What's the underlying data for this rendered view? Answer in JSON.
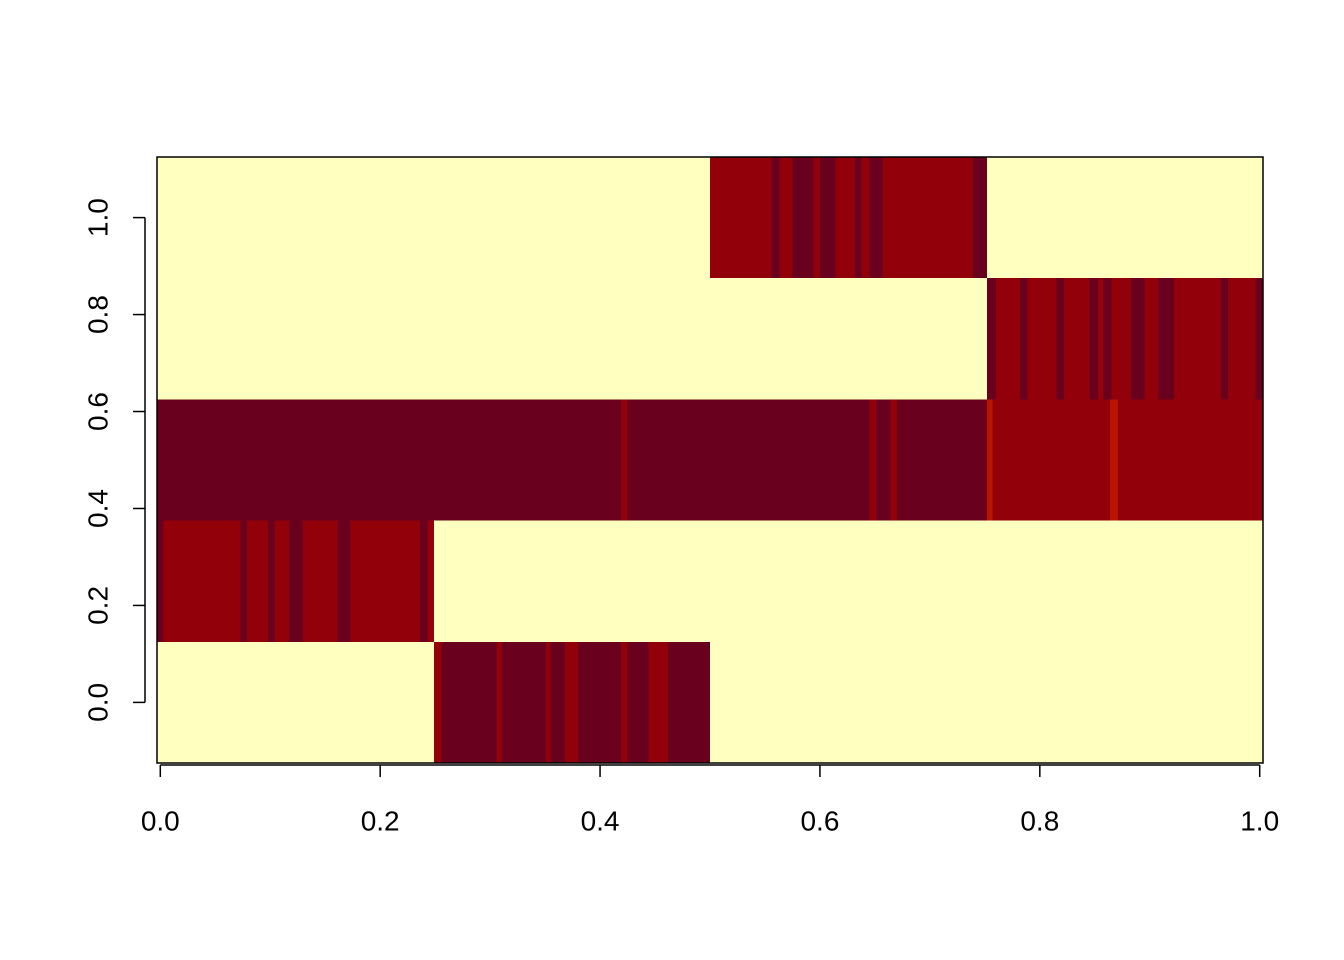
{
  "chart_data": {
    "type": "heatmap",
    "xlim": [
      -0.003,
      1.003
    ],
    "ylim": [
      -0.125,
      1.125
    ],
    "xticks": [
      {
        "value": 0,
        "label": "0.0"
      },
      {
        "value": 0.2,
        "label": "0.2"
      },
      {
        "value": 0.4,
        "label": "0.4"
      },
      {
        "value": 0.6,
        "label": "0.6"
      },
      {
        "value": 0.8,
        "label": "0.8"
      },
      {
        "value": 1,
        "label": "1.0"
      }
    ],
    "yticks": [
      {
        "value": 0,
        "label": "0.0"
      },
      {
        "value": 0.2,
        "label": "0.2"
      },
      {
        "value": 0.4,
        "label": "0.4"
      },
      {
        "value": 0.6,
        "label": "0.6"
      },
      {
        "value": 0.8,
        "label": "0.8"
      },
      {
        "value": 1,
        "label": "1.0"
      }
    ],
    "colors": [
      "#FFFFBF",
      "#B81400",
      "#92000A",
      "#69001E"
    ],
    "rows": [
      {
        "y": 0,
        "runs": [
          [
            -0.003,
            0.249,
            0
          ],
          [
            0.249,
            0.256,
            2
          ],
          [
            0.256,
            0.306,
            3
          ],
          [
            0.306,
            0.311,
            2
          ],
          [
            0.311,
            0.351,
            3
          ],
          [
            0.351,
            0.355,
            2
          ],
          [
            0.355,
            0.368,
            3
          ],
          [
            0.368,
            0.38,
            2
          ],
          [
            0.38,
            0.419,
            3
          ],
          [
            0.419,
            0.425,
            2
          ],
          [
            0.425,
            0.444,
            3
          ],
          [
            0.444,
            0.462,
            2
          ],
          [
            0.462,
            0.5,
            3
          ],
          [
            0.5,
            1.003,
            0
          ]
        ]
      },
      {
        "y": 0.25,
        "runs": [
          [
            -0.003,
            0.003,
            3
          ],
          [
            0.003,
            0.073,
            2
          ],
          [
            0.073,
            0.079,
            3
          ],
          [
            0.079,
            0.098,
            2
          ],
          [
            0.098,
            0.104,
            3
          ],
          [
            0.104,
            0.117,
            2
          ],
          [
            0.117,
            0.13,
            3
          ],
          [
            0.13,
            0.161,
            2
          ],
          [
            0.161,
            0.173,
            3
          ],
          [
            0.173,
            0.236,
            2
          ],
          [
            0.236,
            0.243,
            3
          ],
          [
            0.243,
            0.249,
            2
          ],
          [
            0.249,
            1.003,
            0
          ]
        ]
      },
      {
        "y": 0.5,
        "runs": [
          [
            -0.003,
            0.419,
            3
          ],
          [
            0.419,
            0.425,
            2
          ],
          [
            0.425,
            0.645,
            3
          ],
          [
            0.645,
            0.651,
            2
          ],
          [
            0.651,
            0.664,
            3
          ],
          [
            0.664,
            0.67,
            2
          ],
          [
            0.67,
            0.752,
            3
          ],
          [
            0.752,
            0.757,
            1
          ],
          [
            0.757,
            0.864,
            2
          ],
          [
            0.864,
            0.871,
            1
          ],
          [
            0.871,
            1.003,
            2
          ]
        ]
      },
      {
        "y": 0.75,
        "runs": [
          [
            -0.003,
            0.752,
            0
          ],
          [
            0.752,
            0.76,
            3
          ],
          [
            0.76,
            0.782,
            2
          ],
          [
            0.782,
            0.789,
            3
          ],
          [
            0.789,
            0.815,
            2
          ],
          [
            0.815,
            0.822,
            3
          ],
          [
            0.822,
            0.845,
            2
          ],
          [
            0.845,
            0.853,
            3
          ],
          [
            0.853,
            0.858,
            2
          ],
          [
            0.858,
            0.865,
            3
          ],
          [
            0.865,
            0.883,
            2
          ],
          [
            0.883,
            0.895,
            3
          ],
          [
            0.895,
            0.908,
            2
          ],
          [
            0.908,
            0.922,
            3
          ],
          [
            0.922,
            0.965,
            2
          ],
          [
            0.965,
            0.971,
            3
          ],
          [
            0.971,
            0.996,
            2
          ],
          [
            0.996,
            1.003,
            3
          ]
        ]
      },
      {
        "y": 1,
        "runs": [
          [
            -0.003,
            0.5,
            0
          ],
          [
            0.5,
            0.556,
            2
          ],
          [
            0.556,
            0.563,
            3
          ],
          [
            0.563,
            0.575,
            2
          ],
          [
            0.575,
            0.594,
            3
          ],
          [
            0.594,
            0.6,
            2
          ],
          [
            0.6,
            0.614,
            3
          ],
          [
            0.614,
            0.632,
            2
          ],
          [
            0.632,
            0.638,
            3
          ],
          [
            0.638,
            0.645,
            2
          ],
          [
            0.645,
            0.657,
            3
          ],
          [
            0.657,
            0.739,
            2
          ],
          [
            0.739,
            0.752,
            3
          ],
          [
            0.752,
            1.003,
            0
          ]
        ]
      }
    ]
  }
}
